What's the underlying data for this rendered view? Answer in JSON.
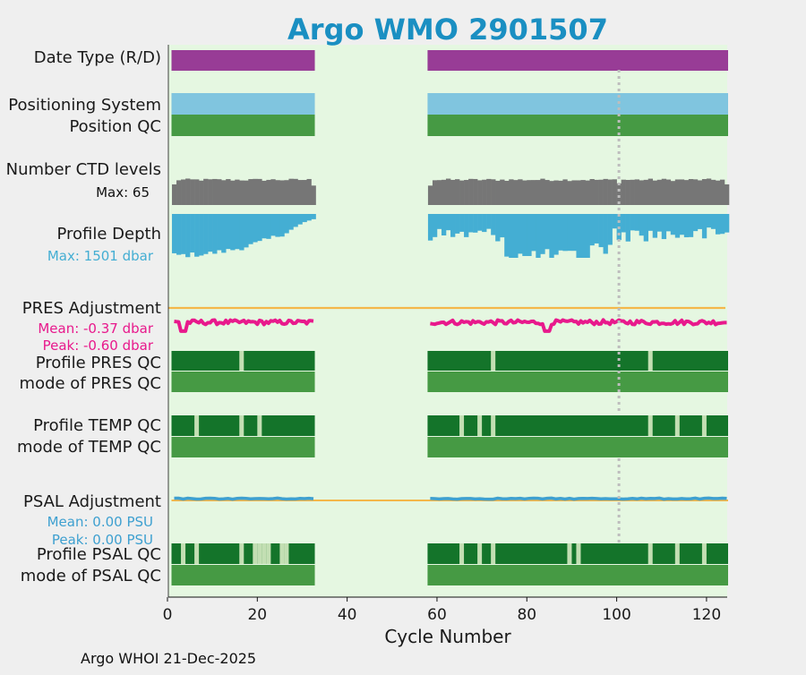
{
  "chart_data": {
    "type": "timeline",
    "title": "Argo WMO 2901507",
    "xlabel": "Cycle Number",
    "xlim": [
      0,
      125
    ],
    "x_ticks": [
      0,
      20,
      40,
      60,
      80,
      100,
      120
    ],
    "x_tick_labels": [
      "0",
      "20",
      "40",
      "60",
      "80",
      "100",
      "120"
    ],
    "reference_cycle": 100,
    "cycle_ranges": [
      [
        1,
        32
      ],
      [
        58,
        124
      ]
    ],
    "labels": {
      "date_type": "Date Type (R/D)",
      "positioning": "Positioning System",
      "position_qc": "Position QC",
      "ctd": "Number CTD levels",
      "ctd_max": "Max: 65",
      "depth": "Profile Depth",
      "depth_max": "Max: 1501 dbar",
      "pres_adj": "PRES Adjustment",
      "pres_mean": "Mean: -0.37 dbar",
      "pres_peak": "Peak: -0.60 dbar",
      "pres_qc": "Profile PRES QC",
      "pres_mode": "mode of PRES QC",
      "temp_qc": "Profile TEMP QC",
      "temp_mode": "mode of TEMP QC",
      "psal_adj": "PSAL Adjustment",
      "psal_mean": "Mean: 0.00 PSU",
      "psal_peak": "Peak: 0.00 PSU",
      "psal_qc": "Profile PSAL QC",
      "psal_mode": "mode of PSAL QC"
    },
    "ctd_levels_max": 65,
    "profile_depth_max_dbar": 1501,
    "pres_adjustment": {
      "mean_dbar": -0.37,
      "peak_dbar": -0.6
    },
    "psal_adjustment": {
      "mean_psu": 0.0,
      "peak_psu": 0.0
    },
    "pres_qc_flagged_cycles": [
      16,
      72,
      107
    ],
    "temp_qc_flagged_cycles": [
      6,
      16,
      20,
      65,
      69,
      72,
      107,
      113,
      119
    ],
    "psal_qc_flagged_cycles": [
      3,
      6,
      16,
      19,
      20,
      21,
      22,
      25,
      26,
      65,
      69,
      72,
      89,
      91,
      107,
      113,
      119
    ],
    "footer": "Argo WHOI 21-Dec-2025"
  },
  "colors": {
    "background": "#efefef",
    "plot_bg": "#e5f7e1",
    "title": "#1a8fc2",
    "date_type": "#983c96",
    "positioning": "#80c5df",
    "qc_mode": "#469a44",
    "qc_profile": "#14742a",
    "qc_flag": "#c3dfb3",
    "ctd": "#767676",
    "depth": "#44aed3",
    "pres_line": "#e8198c",
    "psal_line": "#3ea0d0",
    "zero_line": "#f4b74a",
    "reference": "#bdbdbd"
  }
}
